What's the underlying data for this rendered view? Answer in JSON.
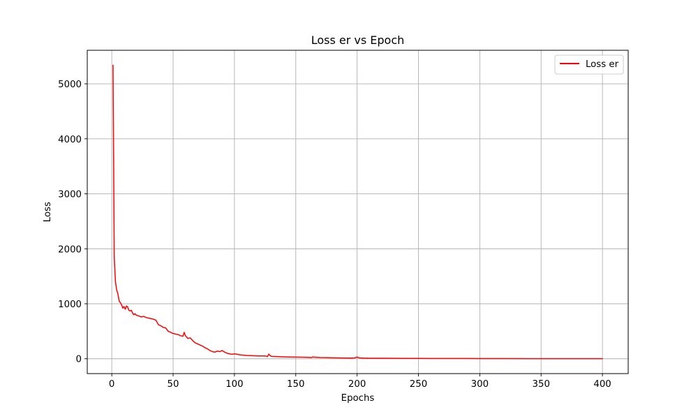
{
  "chart_data": {
    "type": "line",
    "title": "Loss er vs Epoch",
    "xlabel": "Epochs",
    "ylabel": "Loss",
    "xlim": [
      -20,
      421
    ],
    "ylim": [
      -270,
      5610
    ],
    "xticks": [
      0,
      50,
      100,
      150,
      200,
      250,
      300,
      350,
      400
    ],
    "yticks": [
      0,
      1000,
      2000,
      3000,
      4000,
      5000
    ],
    "grid": true,
    "legend_position": "top-right",
    "series": [
      {
        "name": "Loss er",
        "color": "#ff0000",
        "x": [
          1,
          2,
          3,
          4,
          5,
          6,
          7,
          8,
          9,
          10,
          11,
          12,
          13,
          14,
          15,
          16,
          17,
          18,
          19,
          20,
          22,
          24,
          26,
          28,
          30,
          32,
          34,
          36,
          38,
          40,
          42,
          44,
          46,
          48,
          50,
          52,
          54,
          56,
          58,
          59,
          60,
          62,
          64,
          66,
          68,
          70,
          72,
          74,
          76,
          78,
          80,
          82,
          84,
          86,
          88,
          90,
          92,
          94,
          96,
          98,
          100,
          105,
          110,
          115,
          120,
          125,
          127,
          128,
          129,
          130,
          135,
          140,
          145,
          150,
          155,
          160,
          163,
          164,
          165,
          170,
          175,
          180,
          185,
          190,
          195,
          198,
          200,
          202,
          205,
          210,
          220,
          230,
          240,
          250,
          260,
          270,
          280,
          290,
          300,
          320,
          340,
          360,
          380,
          400
        ],
        "y": [
          5340,
          1850,
          1400,
          1250,
          1180,
          1050,
          1020,
          980,
          920,
          950,
          900,
          960,
          940,
          880,
          870,
          880,
          830,
          800,
          820,
          790,
          780,
          760,
          770,
          750,
          740,
          730,
          720,
          700,
          620,
          600,
          570,
          560,
          500,
          480,
          460,
          450,
          440,
          420,
          410,
          480,
          420,
          370,
          380,
          330,
          290,
          270,
          250,
          230,
          200,
          180,
          150,
          130,
          120,
          140,
          130,
          150,
          120,
          100,
          90,
          80,
          90,
          70,
          60,
          55,
          50,
          50,
          40,
          85,
          60,
          45,
          40,
          35,
          32,
          30,
          28,
          25,
          22,
          35,
          28,
          22,
          20,
          18,
          15,
          14,
          13,
          16,
          30,
          15,
          12,
          10,
          9,
          8,
          7,
          6,
          5,
          5,
          4,
          4,
          3,
          3,
          2,
          2,
          2,
          2
        ]
      }
    ]
  }
}
